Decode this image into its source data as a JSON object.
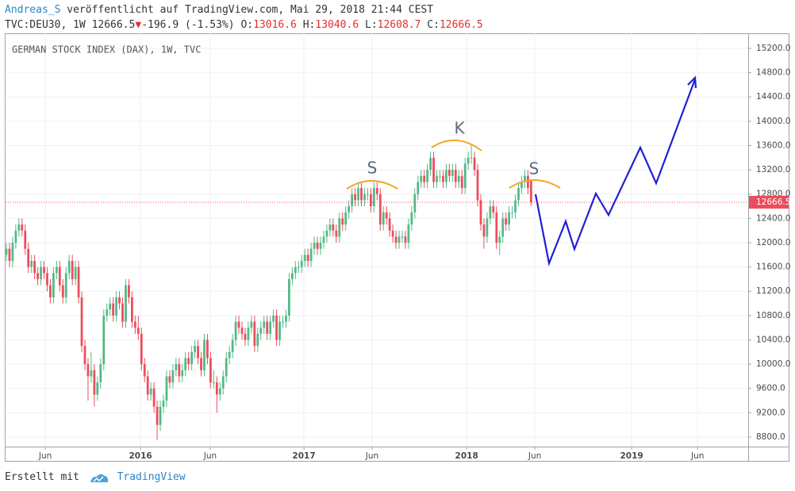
{
  "header": {
    "author": "Andreas_S",
    "published": " veröffentlicht auf TradingView.com, Mai 29, 2018 21:44 CEST",
    "symbol": "TVC:DEU30, 1W 12666.5",
    "arrow": "▼",
    "change": "-196.9 (-1.53%)",
    "o_label": "O:",
    "o_value": "13016.6",
    "h_label": "H:",
    "h_value": "13040.6",
    "l_label": "L:",
    "l_value": "12608.7",
    "c_label": "C:",
    "c_value": "12666.5"
  },
  "footer": {
    "made_with": "Erstellt mit",
    "brand": "TradingView"
  },
  "chart_data": {
    "type": "candlestick",
    "legend": "GERMAN STOCK INDEX (DAX), 1W, TVC",
    "up_color": "#53b987",
    "down_color": "#eb4d5c",
    "last_price": 12666.5,
    "last_price_color": "#eb4d5c",
    "grid": true,
    "annotations": [
      "S",
      "K",
      "S"
    ],
    "xlim": [
      -0.25,
      236.1
    ],
    "ylim": [
      8643,
      15448
    ],
    "xticks": [
      {
        "value": 12.4,
        "label": "Jun"
      },
      {
        "value": 42.7,
        "label": "2016"
      },
      {
        "value": 64.9,
        "label": "Jun"
      },
      {
        "value": 94.7,
        "label": "2017"
      },
      {
        "value": 116.4,
        "label": "Jun"
      },
      {
        "value": 146.5,
        "label": "2018"
      },
      {
        "value": 168.2,
        "label": "Jun"
      },
      {
        "value": 199,
        "label": "2019"
      },
      {
        "value": 220,
        "label": "Jun"
      }
    ],
    "yticks": [
      {
        "value": 8800,
        "label": "8800.0"
      },
      {
        "value": 9200,
        "label": "9200.0"
      },
      {
        "value": 9600,
        "label": "9600.0"
      },
      {
        "value": 10000,
        "label": "10000.0"
      },
      {
        "value": 10400,
        "label": "10400.0"
      },
      {
        "value": 10800,
        "label": "10800.0"
      },
      {
        "value": 11200,
        "label": "11200.0"
      },
      {
        "value": 11600,
        "label": "11600.0"
      },
      {
        "value": 12000,
        "label": "12000.0"
      },
      {
        "value": 12400,
        "label": "12400.0"
      },
      {
        "value": 12800,
        "label": "12800.0"
      },
      {
        "value": 13200,
        "label": "13200.0"
      },
      {
        "value": 13600,
        "label": "13600.0"
      },
      {
        "value": 14000,
        "label": "14000.0"
      },
      {
        "value": 14400,
        "label": "14400.0"
      },
      {
        "value": 14800,
        "label": "14800.0"
      },
      {
        "value": 15200,
        "label": "15200.0"
      }
    ],
    "candles": [
      [
        11800,
        12000,
        11700,
        11900
      ],
      [
        11900,
        12000,
        11600,
        11700
      ],
      [
        11700,
        12100,
        11600,
        12000
      ],
      [
        12000,
        12300,
        11900,
        12200
      ],
      [
        12200,
        12400,
        12100,
        12300
      ],
      [
        12300,
        12400,
        12100,
        12200
      ],
      [
        12200,
        12300,
        11800,
        11900
      ],
      [
        11900,
        12000,
        11500,
        11600
      ],
      [
        11600,
        11800,
        11500,
        11700
      ],
      [
        11700,
        11800,
        11400,
        11500
      ],
      [
        11500,
        11600,
        11300,
        11400
      ],
      [
        11400,
        11700,
        11300,
        11600
      ],
      [
        11600,
        11700,
        11400,
        11500
      ],
      [
        11500,
        11600,
        11200,
        11300
      ],
      [
        11300,
        11400,
        11000,
        11100
      ],
      [
        11100,
        11600,
        11000,
        11500
      ],
      [
        11500,
        11700,
        11400,
        11600
      ],
      [
        11600,
        11700,
        11200,
        11300
      ],
      [
        11300,
        11400,
        11000,
        11100
      ],
      [
        11100,
        11600,
        11000,
        11500
      ],
      [
        11500,
        11800,
        11400,
        11700
      ],
      [
        11700,
        11800,
        11300,
        11400
      ],
      [
        11400,
        11700,
        11300,
        11600
      ],
      [
        11600,
        11700,
        11000,
        11100
      ],
      [
        11100,
        11200,
        10200,
        10300
      ],
      [
        10300,
        10400,
        9900,
        10000
      ],
      [
        10000,
        10100,
        9400,
        9800
      ],
      [
        9800,
        10200,
        9700,
        9900
      ],
      [
        9900,
        10000,
        9300,
        9500
      ],
      [
        9500,
        9800,
        9400,
        9700
      ],
      [
        9700,
        10100,
        9600,
        10000
      ],
      [
        10000,
        10900,
        9900,
        10800
      ],
      [
        10800,
        11000,
        10700,
        10900
      ],
      [
        10900,
        11100,
        10800,
        11000
      ],
      [
        11000,
        11100,
        10700,
        10800
      ],
      [
        10800,
        11200,
        10700,
        11100
      ],
      [
        11100,
        11200,
        10900,
        11000
      ],
      [
        11000,
        11100,
        10600,
        10700
      ],
      [
        10700,
        11400,
        10600,
        11300
      ],
      [
        11300,
        11400,
        11000,
        11100
      ],
      [
        11100,
        11200,
        10600,
        10700
      ],
      [
        10700,
        10800,
        10500,
        10600
      ],
      [
        10600,
        10800,
        10400,
        10500
      ],
      [
        10500,
        10600,
        9900,
        10000
      ],
      [
        10000,
        10100,
        9700,
        9800
      ],
      [
        9800,
        9900,
        9400,
        9500
      ],
      [
        9500,
        9700,
        9400,
        9600
      ],
      [
        9600,
        9700,
        9200,
        9300
      ],
      [
        9300,
        9400,
        8750,
        9000
      ],
      [
        9000,
        9400,
        8900,
        9300
      ],
      [
        9300,
        9500,
        9200,
        9400
      ],
      [
        9400,
        9900,
        9300,
        9800
      ],
      [
        9800,
        9900,
        9600,
        9700
      ],
      [
        9700,
        10000,
        9600,
        9900
      ],
      [
        9900,
        10100,
        9800,
        10000
      ],
      [
        10000,
        10100,
        9700,
        9800
      ],
      [
        9800,
        10000,
        9700,
        9900
      ],
      [
        9900,
        10200,
        9800,
        10100
      ],
      [
        10100,
        10200,
        9900,
        10000
      ],
      [
        10000,
        10300,
        9900,
        10200
      ],
      [
        10200,
        10400,
        10100,
        10300
      ],
      [
        10300,
        10400,
        10000,
        10100
      ],
      [
        10100,
        10200,
        9800,
        9900
      ],
      [
        9900,
        10500,
        9800,
        10400
      ],
      [
        10400,
        10500,
        10000,
        10100
      ],
      [
        10100,
        10200,
        9600,
        9700
      ],
      [
        9700,
        9900,
        9600,
        9700
      ],
      [
        9700,
        9800,
        9200,
        9500
      ],
      [
        9500,
        9700,
        9400,
        9600
      ],
      [
        9600,
        9900,
        9500,
        9800
      ],
      [
        9800,
        10200,
        9700,
        10100
      ],
      [
        10100,
        10300,
        10000,
        10200
      ],
      [
        10200,
        10500,
        10100,
        10400
      ],
      [
        10400,
        10800,
        10300,
        10700
      ],
      [
        10700,
        10800,
        10500,
        10600
      ],
      [
        10600,
        10700,
        10400,
        10500
      ],
      [
        10500,
        10600,
        10300,
        10400
      ],
      [
        10400,
        10700,
        10300,
        10600
      ],
      [
        10600,
        10800,
        10500,
        10700
      ],
      [
        10700,
        10800,
        10200,
        10300
      ],
      [
        10300,
        10600,
        10200,
        10500
      ],
      [
        10500,
        10700,
        10400,
        10600
      ],
      [
        10600,
        10800,
        10500,
        10700
      ],
      [
        10700,
        10800,
        10400,
        10500
      ],
      [
        10500,
        10800,
        10400,
        10700
      ],
      [
        10700,
        10900,
        10600,
        10800
      ],
      [
        10800,
        10900,
        10300,
        10400
      ],
      [
        10400,
        10800,
        10300,
        10700
      ],
      [
        10700,
        10800,
        10600,
        10700
      ],
      [
        10700,
        10900,
        10600,
        10800
      ],
      [
        10800,
        11500,
        10700,
        11400
      ],
      [
        11400,
        11600,
        11300,
        11500
      ],
      [
        11500,
        11700,
        11400,
        11600
      ],
      [
        11600,
        11700,
        11500,
        11600
      ],
      [
        11600,
        11800,
        11500,
        11700
      ],
      [
        11700,
        11900,
        11600,
        11800
      ],
      [
        11800,
        11900,
        11600,
        11700
      ],
      [
        11700,
        12000,
        11600,
        11900
      ],
      [
        11900,
        12100,
        11800,
        12000
      ],
      [
        12000,
        12100,
        11800,
        11900
      ],
      [
        11900,
        12100,
        11800,
        12000
      ],
      [
        12000,
        12200,
        11900,
        12100
      ],
      [
        12100,
        12300,
        12000,
        12200
      ],
      [
        12200,
        12400,
        12100,
        12300
      ],
      [
        12300,
        12400,
        12100,
        12200
      ],
      [
        12200,
        12300,
        12000,
        12100
      ],
      [
        12100,
        12500,
        12000,
        12400
      ],
      [
        12400,
        12500,
        12200,
        12300
      ],
      [
        12300,
        12600,
        12200,
        12500
      ],
      [
        12500,
        12700,
        12400,
        12600
      ],
      [
        12600,
        12900,
        12500,
        12800
      ],
      [
        12800,
        12900,
        12600,
        12700
      ],
      [
        12700,
        13000,
        12600,
        12900
      ],
      [
        12900,
        13000,
        12600,
        12700
      ],
      [
        12700,
        12900,
        12600,
        12800
      ],
      [
        12800,
        12900,
        12700,
        12800
      ],
      [
        12800,
        12900,
        12500,
        12600
      ],
      [
        12600,
        13000,
        12500,
        12900
      ],
      [
        12900,
        13000,
        12700,
        12800
      ],
      [
        12800,
        12900,
        12200,
        12300
      ],
      [
        12300,
        12600,
        12200,
        12500
      ],
      [
        12500,
        12600,
        12300,
        12400
      ],
      [
        12400,
        12500,
        12100,
        12200
      ],
      [
        12200,
        12300,
        12000,
        12100
      ],
      [
        12100,
        12200,
        11900,
        12000
      ],
      [
        12000,
        12200,
        11900,
        12100
      ],
      [
        12100,
        12200,
        12000,
        12100
      ],
      [
        12100,
        12200,
        11900,
        12000
      ],
      [
        12000,
        12400,
        11900,
        12300
      ],
      [
        12300,
        12600,
        12200,
        12500
      ],
      [
        12500,
        12900,
        12400,
        12800
      ],
      [
        12800,
        13100,
        12700,
        13000
      ],
      [
        13000,
        13200,
        12900,
        13100
      ],
      [
        13100,
        13200,
        12900,
        13000
      ],
      [
        13000,
        13300,
        12900,
        13200
      ],
      [
        13200,
        13500,
        13100,
        13400
      ],
      [
        13400,
        13500,
        12900,
        13000
      ],
      [
        13000,
        13200,
        12900,
        13100
      ],
      [
        13100,
        13200,
        13000,
        13100
      ],
      [
        13100,
        13200,
        12900,
        13000
      ],
      [
        13000,
        13300,
        12900,
        13200
      ],
      [
        13200,
        13300,
        13000,
        13100
      ],
      [
        13100,
        13300,
        13000,
        13200
      ],
      [
        13200,
        13300,
        12900,
        13000
      ],
      [
        13000,
        13200,
        12900,
        13100
      ],
      [
        13100,
        13200,
        12800,
        12900
      ],
      [
        12900,
        13400,
        12800,
        13300
      ],
      [
        13300,
        13500,
        13200,
        13400
      ],
      [
        13400,
        13600,
        13300,
        13400
      ],
      [
        13400,
        13500,
        13100,
        13200
      ],
      [
        13200,
        13300,
        12600,
        12700
      ],
      [
        12700,
        12800,
        12200,
        12300
      ],
      [
        12300,
        12400,
        11900,
        12100
      ],
      [
        12100,
        12500,
        12000,
        12400
      ],
      [
        12400,
        12700,
        12300,
        12600
      ],
      [
        12600,
        12700,
        12400,
        12500
      ],
      [
        12500,
        12600,
        11900,
        12000
      ],
      [
        12000,
        12200,
        11800,
        12100
      ],
      [
        12100,
        12500,
        12000,
        12400
      ],
      [
        12400,
        12500,
        12200,
        12300
      ],
      [
        12300,
        12600,
        12200,
        12500
      ],
      [
        12500,
        12600,
        12400,
        12500
      ],
      [
        12500,
        12800,
        12400,
        12700
      ],
      [
        12700,
        13000,
        12600,
        12900
      ],
      [
        12900,
        13100,
        12800,
        13000
      ],
      [
        13000,
        13200,
        12900,
        13100
      ],
      [
        13100,
        13200,
        12800,
        12900
      ],
      [
        13016.6,
        13040.6,
        12608.7,
        12666.5
      ]
    ]
  }
}
